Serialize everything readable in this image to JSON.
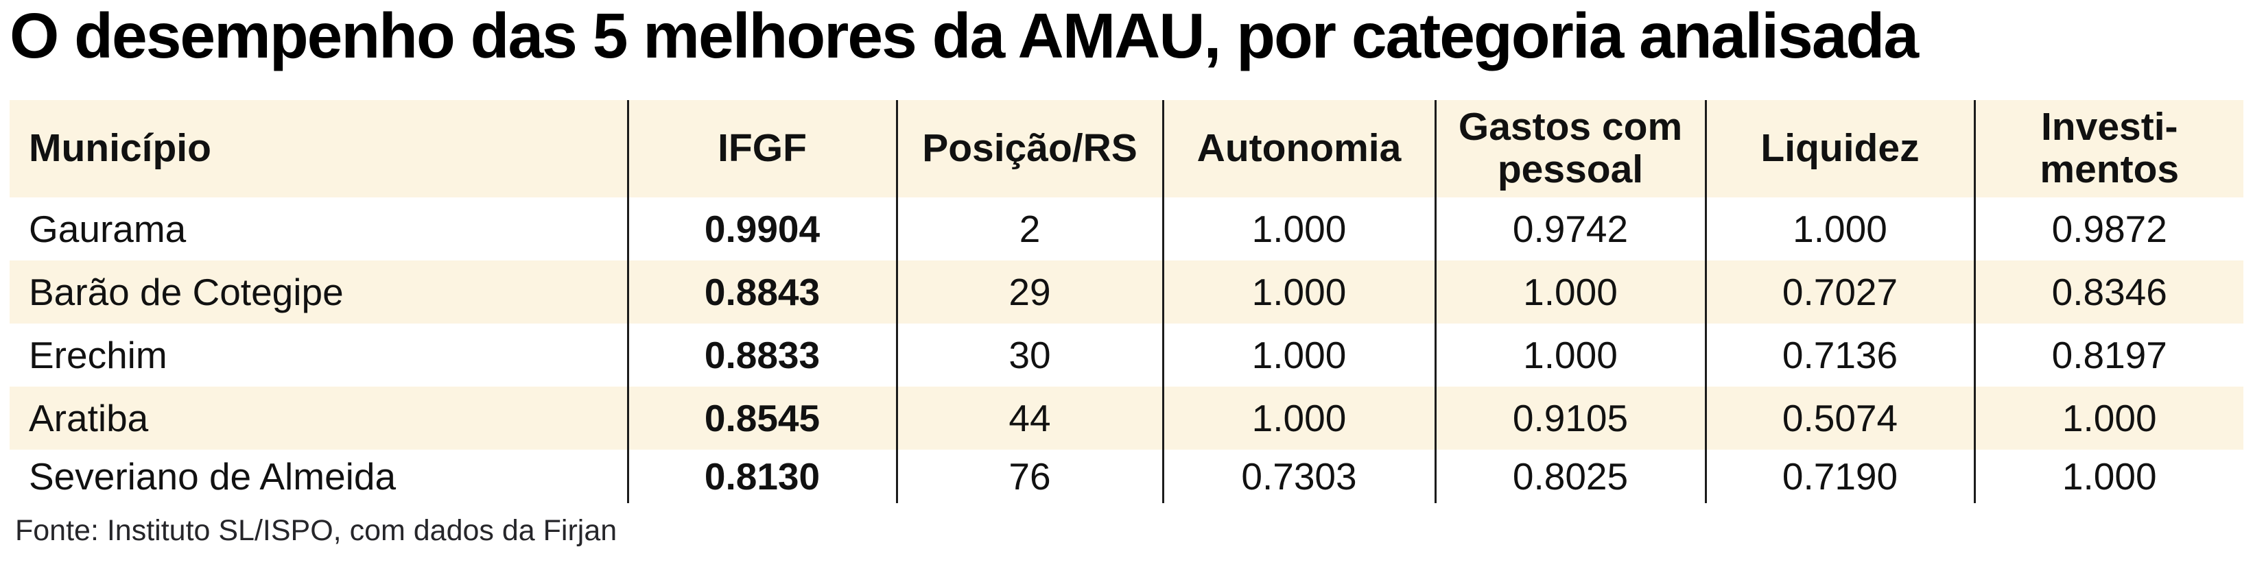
{
  "title": "O desempenho das 5 melhores da AMAU, por categoria analisada",
  "source_note": "Fonte: Instituto SL/ISPO, com dados da Firjan",
  "colors": {
    "cream": "#fcf4e1",
    "line": "#1c1c1c",
    "text": "#111111"
  },
  "chart_data": {
    "type": "table",
    "title": "O desempenho das 5 melhores da AMAU, por categoria analisada",
    "columns": [
      "Município",
      "IFGF",
      "Posição/RS",
      "Autonomia",
      "Gastos com pessoal",
      "Liquidez",
      "Investi-mentos"
    ],
    "rows": [
      [
        "Gaurama",
        "0.9904",
        "2",
        "1.000",
        "0.9742",
        "1.000",
        "0.9872"
      ],
      [
        "Barão de Cotegipe",
        "0.8843",
        "29",
        "1.000",
        "1.000",
        "0.7027",
        "0.8346"
      ],
      [
        "Erechim",
        "0.8833",
        "30",
        "1.000",
        "1.000",
        "0.7136",
        "0.8197"
      ],
      [
        "Aratiba",
        "0.8545",
        "44",
        "1.000",
        "0.9105",
        "0.5074",
        "1.000"
      ],
      [
        "Severiano de Almeida",
        "0.8130",
        "76",
        "0.7303",
        "0.8025",
        "0.7190",
        "1.000"
      ]
    ],
    "source": "Fonte: Instituto SL/ISPO, com dados da Firjan",
    "layout": {
      "bold_column": "IFGF",
      "striped_rows": true,
      "header_background": "cream",
      "column_dividers": "vertical black lines only, no horizontal rules"
    }
  }
}
